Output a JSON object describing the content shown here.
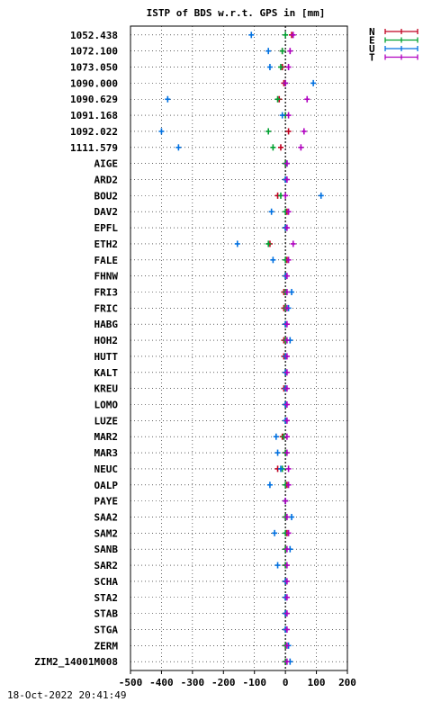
{
  "chart_data": {
    "type": "scatter",
    "title": "ISTP of BDS w.r.t. GPS in [mm]",
    "footer_timestamp": "18-Oct-2022 20:41:49",
    "xlim": [
      -500,
      200
    ],
    "xticks": [
      -500,
      -400,
      -300,
      -200,
      -100,
      0,
      100,
      200
    ],
    "grid": true,
    "legend_position": "top-right",
    "reference_line_x": 0,
    "categories": [
      "1052.438",
      "1072.100",
      "1073.050",
      "1090.000",
      "1090.629",
      "1091.168",
      "1092.022",
      "1111.579",
      "AIGE",
      "ARD2",
      "BOU2",
      "DAV2",
      "EPFL",
      "ETH2",
      "FALE",
      "FHNW",
      "FRI3",
      "FRIC",
      "HABG",
      "HOH2",
      "HUTT",
      "KALT",
      "KREU",
      "LOMO",
      "LUZE",
      "MAR2",
      "MAR3",
      "NEUC",
      "OALP",
      "PAYE",
      "SAA2",
      "SAM2",
      "SANB",
      "SAR2",
      "SCHA",
      "STA2",
      "STAB",
      "STGA",
      "ZERM",
      "ZIM2_14001M008"
    ],
    "series": [
      {
        "name": "N",
        "color": "#c00020",
        "values": [
          20,
          -10,
          -10,
          -5,
          -20,
          0,
          10,
          -15,
          0,
          0,
          -25,
          5,
          0,
          -50,
          5,
          0,
          -5,
          -5,
          0,
          -5,
          -5,
          0,
          -5,
          0,
          0,
          -10,
          0,
          -25,
          5,
          0,
          0,
          5,
          0,
          0,
          0,
          0,
          0,
          0,
          0,
          0
        ]
      },
      {
        "name": "E",
        "color": "#00a030",
        "values": [
          0,
          -10,
          -15,
          0,
          -25,
          0,
          -55,
          -40,
          0,
          0,
          -15,
          0,
          0,
          -55,
          0,
          0,
          0,
          0,
          0,
          0,
          0,
          0,
          0,
          0,
          0,
          -5,
          0,
          -10,
          0,
          0,
          0,
          0,
          0,
          0,
          0,
          0,
          0,
          0,
          0,
          0
        ]
      },
      {
        "name": "U",
        "color": "#0070e0",
        "values": [
          -110,
          -55,
          -50,
          90,
          -380,
          -10,
          -400,
          -345,
          5,
          0,
          115,
          -45,
          0,
          -155,
          -40,
          0,
          20,
          10,
          0,
          15,
          0,
          0,
          0,
          0,
          0,
          -30,
          -25,
          -15,
          -50,
          0,
          20,
          -35,
          15,
          -25,
          0,
          0,
          0,
          0,
          10,
          15
        ]
      },
      {
        "name": "T",
        "color": "#b000c0",
        "values": [
          25,
          15,
          10,
          0,
          70,
          10,
          60,
          50,
          5,
          5,
          0,
          10,
          5,
          25,
          10,
          5,
          5,
          5,
          5,
          5,
          5,
          5,
          5,
          5,
          5,
          5,
          5,
          10,
          10,
          0,
          5,
          10,
          5,
          5,
          5,
          5,
          5,
          5,
          5,
          5
        ]
      }
    ]
  }
}
